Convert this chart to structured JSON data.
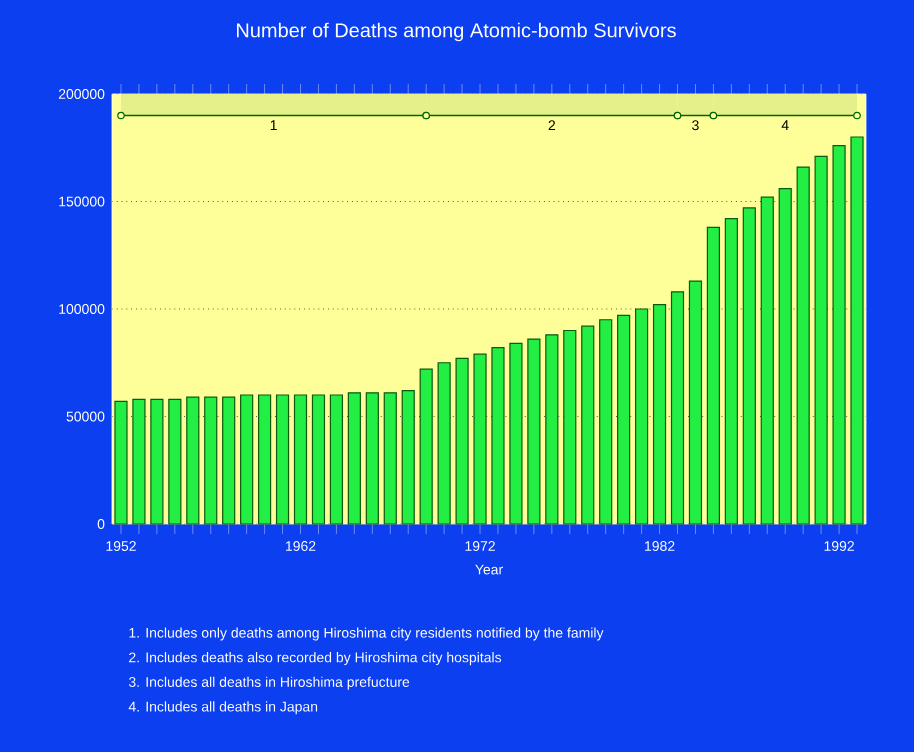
{
  "chart_data": {
    "type": "bar",
    "title": "Number of Deaths among Atomic-bomb Survivors",
    "xlabel": "Year",
    "x": [
      1952,
      1953,
      1954,
      1955,
      1956,
      1957,
      1958,
      1959,
      1960,
      1961,
      1962,
      1963,
      1964,
      1965,
      1966,
      1967,
      1968,
      1969,
      1970,
      1971,
      1972,
      1973,
      1974,
      1975,
      1976,
      1977,
      1978,
      1979,
      1980,
      1981,
      1982,
      1983,
      1984,
      1985,
      1986,
      1987,
      1988,
      1989,
      1990,
      1991,
      1992,
      1993
    ],
    "values": [
      57000,
      58000,
      58000,
      58000,
      59000,
      59000,
      59000,
      60000,
      60000,
      60000,
      60000,
      60000,
      60000,
      61000,
      61000,
      61000,
      62000,
      72000,
      75000,
      77000,
      79000,
      82000,
      84000,
      86000,
      88000,
      90000,
      92000,
      95000,
      97000,
      100000,
      102000,
      108000,
      113000,
      138000,
      142000,
      147000,
      152000,
      156000,
      166000,
      171000,
      176000,
      180000
    ],
    "color": "#22ee44",
    "xlim": [
      1951.5,
      1993.5
    ],
    "xticks": [
      1952,
      {
        "value": 1953,
        "label": null
      },
      {
        "value": 1954,
        "label": null
      },
      {
        "value": 1955,
        "label": null
      },
      {
        "value": 1956,
        "label": null
      },
      {
        "value": 1957,
        "label": null
      },
      {
        "value": 1958,
        "label": null
      },
      {
        "value": 1959,
        "label": null
      },
      {
        "value": 1960,
        "label": null
      },
      {
        "value": 1961,
        "label": null
      },
      1962,
      {
        "value": 1963,
        "label": null
      },
      {
        "value": 1964,
        "label": null
      },
      {
        "value": 1965,
        "label": null
      },
      {
        "value": 1966,
        "label": null
      },
      {
        "value": 1967,
        "label": null
      },
      {
        "value": 1968,
        "label": null
      },
      {
        "value": 1969,
        "label": null
      },
      {
        "value": 1970,
        "label": null
      },
      {
        "value": 1971,
        "label": null
      },
      1972,
      {
        "value": 1973,
        "label": null
      },
      {
        "value": 1974,
        "label": null
      },
      {
        "value": 1975,
        "label": null
      },
      {
        "value": 1976,
        "label": null
      },
      {
        "value": 1977,
        "label": null
      },
      {
        "value": 1978,
        "label": null
      },
      {
        "value": 1979,
        "label": null
      },
      {
        "value": 1980,
        "label": null
      },
      {
        "value": 1981,
        "label": null
      },
      1982,
      {
        "value": 1983,
        "label": null
      },
      {
        "value": 1984,
        "label": null
      },
      {
        "value": 1985,
        "label": null
      },
      {
        "value": 1986,
        "label": null
      },
      {
        "value": 1987,
        "label": null
      },
      {
        "value": 1988,
        "label": null
      },
      {
        "value": 1989,
        "label": null
      },
      {
        "value": 1990,
        "label": null
      },
      {
        "value": 1991,
        "label": null
      },
      1992,
      {
        "value": 1993,
        "label": null
      }
    ],
    "ylim": [
      0,
      200000
    ],
    "yticks": [
      0,
      50000,
      100000,
      150000,
      200000
    ],
    "grid": "y",
    "bands": [
      {
        "axis": "x",
        "from": 1952,
        "to": 1969,
        "label": "1"
      },
      {
        "axis": "x",
        "from": 1969,
        "to": 1983,
        "label": "2"
      },
      {
        "axis": "x",
        "from": 1983,
        "to": 1985,
        "label": "3"
      },
      {
        "axis": "x",
        "from": 1985,
        "to": 1993,
        "label": "4"
      }
    ],
    "annotations": [
      "1. Includes only deaths among Hiroshima city residents notified by the family",
      "2. Includes deaths also recorded  by Hiroshima city hospitals",
      "3. Includes all deaths in Hiroshima prefucture",
      "4. Includes all deaths in Japan"
    ]
  }
}
